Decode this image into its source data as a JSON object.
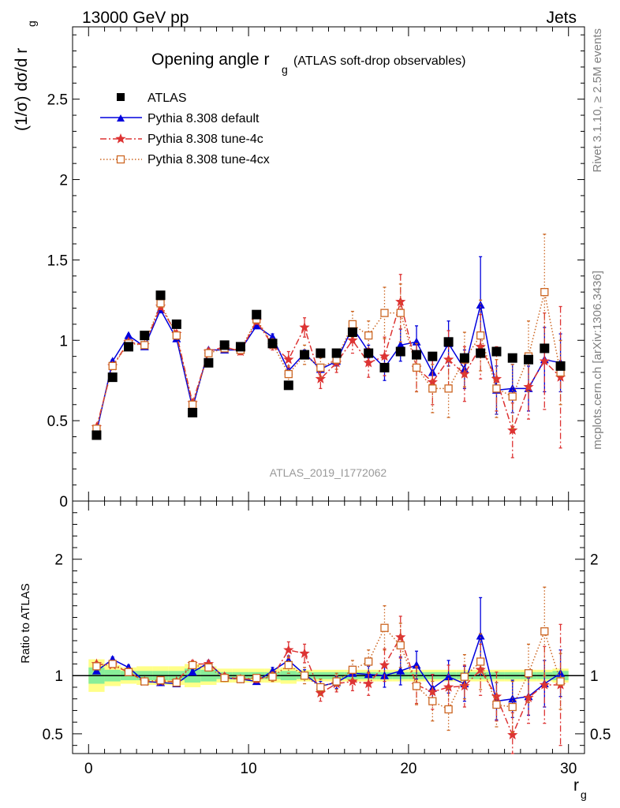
{
  "header": {
    "energy_label": "13000 GeV pp",
    "category_label": "Jets"
  },
  "side_text": {
    "rivet": "Rivet 3.1.10, ≥ 2.5M events",
    "mcplots": "mcplots.cern.ch [arXiv:1306.3436]"
  },
  "chart_data": [
    {
      "type": "scatter",
      "title_main": "Opening angle r",
      "title_sub": "g",
      "title_extra": "(ATLAS soft-drop observables)",
      "analysis_label": "ATLAS_2019_I1772062",
      "ylabel_main": "(1/σ) dσ/d r",
      "ylabel_sub": "g",
      "xlim": [
        -1,
        31
      ],
      "ylim": [
        0,
        2.95
      ],
      "yticks": [
        0,
        0.5,
        1,
        1.5,
        2,
        2.5
      ],
      "ytick_labels": [
        "0",
        "0.5",
        "1",
        "1.5",
        "2",
        "2.5"
      ],
      "legend": [
        "ATLAS",
        "Pythia 8.308 default",
        "Pythia 8.308 tune-4c",
        "Pythia 8.308 tune-4cx"
      ],
      "legend_position": "top-left",
      "series": [
        {
          "name": "ATLAS",
          "color": "#000000",
          "marker": "square-filled",
          "x": [
            0.5,
            1.5,
            2.5,
            3.5,
            4.5,
            5.5,
            6.5,
            7.5,
            8.5,
            9.5,
            10.5,
            11.5,
            12.5,
            13.5,
            14.5,
            15.5,
            16.5,
            17.5,
            18.5,
            19.5,
            20.5,
            21.5,
            22.5,
            23.5,
            24.5,
            25.5,
            26.5,
            27.5,
            28.5,
            29.5
          ],
          "y": [
            0.41,
            0.77,
            0.96,
            1.03,
            1.28,
            1.1,
            0.55,
            0.86,
            0.97,
            0.96,
            1.16,
            0.98,
            0.72,
            0.91,
            0.92,
            0.92,
            1.05,
            0.92,
            0.83,
            0.93,
            0.91,
            0.9,
            0.99,
            0.89,
            0.92,
            0.93,
            0.89,
            0.88,
            0.95,
            0.84
          ],
          "err": [
            0,
            0,
            0,
            0,
            0,
            0,
            0,
            0,
            0,
            0,
            0,
            0,
            0,
            0,
            0,
            0,
            0,
            0,
            0,
            0,
            0,
            0,
            0,
            0,
            0,
            0,
            0,
            0,
            0,
            0
          ]
        },
        {
          "name": "Pythia 8.308 default",
          "color": "#0000dd",
          "marker": "triangle-filled",
          "linestyle": "solid",
          "x": [
            0.5,
            1.5,
            2.5,
            3.5,
            4.5,
            5.5,
            6.5,
            7.5,
            8.5,
            9.5,
            10.5,
            11.5,
            12.5,
            13.5,
            14.5,
            15.5,
            16.5,
            17.5,
            18.5,
            19.5,
            20.5,
            21.5,
            22.5,
            23.5,
            24.5,
            25.5,
            26.5,
            27.5,
            28.5,
            29.5
          ],
          "y": [
            0.43,
            0.87,
            1.03,
            0.96,
            1.19,
            1.01,
            0.58,
            0.94,
            0.94,
            0.94,
            1.09,
            1.02,
            0.81,
            0.92,
            0.82,
            0.87,
            1.08,
            0.93,
            0.83,
            0.97,
            0.99,
            0.8,
            0.98,
            0.82,
            1.22,
            0.69,
            0.7,
            0.7,
            0.88,
            0.86
          ],
          "err": [
            0.01,
            0.01,
            0.01,
            0.01,
            0.01,
            0.01,
            0.01,
            0.01,
            0.01,
            0.01,
            0.01,
            0.02,
            0.02,
            0.02,
            0.02,
            0.03,
            0.03,
            0.04,
            0.08,
            0.1,
            0.1,
            0.1,
            0.14,
            0.12,
            0.3,
            0.15,
            0.15,
            0.14,
            0.2,
            0.18
          ]
        },
        {
          "name": "Pythia 8.308 tune-4c",
          "color": "#dd3333",
          "marker": "star",
          "linestyle": "dashdot",
          "x": [
            0.5,
            1.5,
            2.5,
            3.5,
            4.5,
            5.5,
            6.5,
            7.5,
            8.5,
            9.5,
            10.5,
            11.5,
            12.5,
            13.5,
            14.5,
            15.5,
            16.5,
            17.5,
            18.5,
            19.5,
            20.5,
            21.5,
            22.5,
            23.5,
            24.5,
            25.5,
            26.5,
            27.5,
            28.5,
            29.5
          ],
          "y": [
            0.46,
            0.84,
            0.99,
            0.97,
            1.21,
            1.04,
            0.61,
            0.93,
            0.96,
            0.93,
            1.12,
            0.97,
            0.88,
            1.08,
            0.76,
            0.86,
            1.0,
            0.86,
            0.9,
            1.24,
            0.83,
            0.74,
            0.88,
            0.79,
            0.96,
            0.76,
            0.44,
            0.71,
            0.87,
            0.77
          ],
          "err": [
            0.01,
            0.01,
            0.01,
            0.01,
            0.02,
            0.02,
            0.02,
            0.02,
            0.02,
            0.02,
            0.02,
            0.03,
            0.05,
            0.06,
            0.06,
            0.06,
            0.08,
            0.09,
            0.12,
            0.17,
            0.15,
            0.14,
            0.18,
            0.17,
            0.2,
            0.2,
            0.17,
            0.2,
            0.3,
            0.44
          ]
        },
        {
          "name": "Pythia 8.308 tune-4cx",
          "color": "#cc6622",
          "marker": "square-open",
          "linestyle": "dotted",
          "x": [
            0.5,
            1.5,
            2.5,
            3.5,
            4.5,
            5.5,
            6.5,
            7.5,
            8.5,
            9.5,
            10.5,
            11.5,
            12.5,
            13.5,
            14.5,
            15.5,
            16.5,
            17.5,
            18.5,
            19.5,
            20.5,
            21.5,
            22.5,
            23.5,
            24.5,
            25.5,
            26.5,
            27.5,
            28.5,
            29.5
          ],
          "y": [
            0.45,
            0.84,
            0.98,
            0.97,
            1.23,
            1.03,
            0.6,
            0.92,
            0.95,
            0.94,
            1.13,
            0.98,
            0.79,
            0.91,
            0.83,
            0.88,
            1.1,
            1.03,
            1.17,
            1.17,
            0.83,
            0.7,
            0.7,
            0.88,
            1.03,
            0.7,
            0.65,
            0.9,
            1.3,
            0.8
          ],
          "err": [
            0.01,
            0.01,
            0.01,
            0.01,
            0.02,
            0.02,
            0.02,
            0.02,
            0.02,
            0.02,
            0.02,
            0.03,
            0.05,
            0.06,
            0.06,
            0.06,
            0.08,
            0.09,
            0.16,
            0.18,
            0.15,
            0.15,
            0.18,
            0.17,
            0.22,
            0.18,
            0.2,
            0.22,
            0.36,
            0.2
          ]
        }
      ]
    },
    {
      "type": "scatter",
      "ylabel": "Ratio to ATLAS",
      "xlabel_main": "r",
      "xlabel_sub": "g",
      "xlim": [
        -1,
        31
      ],
      "ylim": [
        0.33,
        2.5
      ],
      "xticks": [
        0,
        10,
        20,
        30
      ],
      "xtick_labels": [
        "0",
        "10",
        "20",
        "30"
      ],
      "yticks": [
        0.5,
        1,
        2
      ],
      "ytick_labels": [
        "0.5",
        "1",
        "2"
      ],
      "reference_line": 1,
      "band_inner_color": "#88ee99",
      "band_outer_color": "#ffff88",
      "bands": {
        "x": [
          0.5,
          1.5,
          2.5,
          3.5,
          4.5,
          5.5,
          6.5,
          7.5,
          8.5,
          9.5,
          10.5,
          11.5,
          12.5,
          13.5,
          14.5,
          15.5,
          16.5,
          17.5,
          18.5,
          19.5,
          20.5,
          21.5,
          22.5,
          23.5,
          24.5,
          25.5,
          26.5,
          27.5,
          28.5,
          29.5
        ],
        "inner": [
          0.07,
          0.05,
          0.04,
          0.04,
          0.04,
          0.04,
          0.06,
          0.05,
          0.03,
          0.03,
          0.03,
          0.03,
          0.04,
          0.03,
          0.03,
          0.03,
          0.03,
          0.03,
          0.03,
          0.03,
          0.03,
          0.03,
          0.03,
          0.03,
          0.03,
          0.03,
          0.03,
          0.03,
          0.03,
          0.04
        ],
        "outer": [
          0.14,
          0.09,
          0.07,
          0.08,
          0.08,
          0.08,
          0.1,
          0.08,
          0.06,
          0.06,
          0.06,
          0.06,
          0.07,
          0.05,
          0.05,
          0.05,
          0.05,
          0.05,
          0.05,
          0.05,
          0.05,
          0.05,
          0.05,
          0.05,
          0.05,
          0.05,
          0.05,
          0.05,
          0.05,
          0.06
        ]
      },
      "series": [
        {
          "name": "Pythia 8.308 default",
          "color": "#0000dd",
          "marker": "triangle-filled",
          "linestyle": "solid",
          "x": [
            0.5,
            1.5,
            2.5,
            3.5,
            4.5,
            5.5,
            6.5,
            7.5,
            8.5,
            9.5,
            10.5,
            11.5,
            12.5,
            13.5,
            14.5,
            15.5,
            16.5,
            17.5,
            18.5,
            19.5,
            20.5,
            21.5,
            22.5,
            23.5,
            24.5,
            25.5,
            26.5,
            27.5,
            28.5,
            29.5
          ],
          "y": [
            1.04,
            1.14,
            1.07,
            0.95,
            0.94,
            0.93,
            1.03,
            1.11,
            0.98,
            0.97,
            0.95,
            1.04,
            1.13,
            1.01,
            0.91,
            0.94,
            1.02,
            1.01,
            1.0,
            1.04,
            1.09,
            0.89,
            0.99,
            0.93,
            1.34,
            0.78,
            0.8,
            0.82,
            0.93,
            1.02
          ],
          "err": [
            0.02,
            0.02,
            0.02,
            0.01,
            0.01,
            0.01,
            0.02,
            0.02,
            0.02,
            0.02,
            0.02,
            0.03,
            0.04,
            0.04,
            0.04,
            0.05,
            0.06,
            0.07,
            0.1,
            0.12,
            0.12,
            0.12,
            0.14,
            0.15,
            0.33,
            0.16,
            0.16,
            0.16,
            0.2,
            0.2
          ]
        },
        {
          "name": "Pythia 8.308 tune-4c",
          "color": "#dd3333",
          "marker": "star",
          "linestyle": "dashdot",
          "x": [
            0.5,
            1.5,
            2.5,
            3.5,
            4.5,
            5.5,
            6.5,
            7.5,
            8.5,
            9.5,
            10.5,
            11.5,
            12.5,
            13.5,
            14.5,
            15.5,
            16.5,
            17.5,
            18.5,
            19.5,
            20.5,
            21.5,
            22.5,
            23.5,
            24.5,
            25.5,
            26.5,
            27.5,
            28.5,
            29.5
          ],
          "y": [
            1.1,
            1.09,
            1.03,
            0.95,
            0.95,
            0.95,
            1.1,
            1.1,
            0.99,
            0.97,
            0.97,
            0.99,
            1.22,
            1.19,
            0.85,
            0.93,
            0.95,
            0.93,
            1.09,
            1.33,
            0.92,
            0.86,
            0.9,
            0.91,
            1.05,
            0.82,
            0.49,
            0.81,
            0.92,
            0.92
          ],
          "err": [
            0.02,
            0.02,
            0.02,
            0.02,
            0.02,
            0.02,
            0.03,
            0.03,
            0.03,
            0.03,
            0.03,
            0.04,
            0.07,
            0.08,
            0.07,
            0.07,
            0.08,
            0.1,
            0.14,
            0.18,
            0.16,
            0.15,
            0.19,
            0.18,
            0.22,
            0.21,
            0.19,
            0.22,
            0.33,
            0.52
          ]
        },
        {
          "name": "Pythia 8.308 tune-4cx",
          "color": "#cc6622",
          "marker": "square-open",
          "linestyle": "dotted",
          "x": [
            0.5,
            1.5,
            2.5,
            3.5,
            4.5,
            5.5,
            6.5,
            7.5,
            8.5,
            9.5,
            10.5,
            11.5,
            12.5,
            13.5,
            14.5,
            15.5,
            16.5,
            17.5,
            18.5,
            19.5,
            20.5,
            21.5,
            22.5,
            23.5,
            24.5,
            25.5,
            26.5,
            27.5,
            28.5,
            29.5
          ],
          "y": [
            1.08,
            1.1,
            1.03,
            0.95,
            0.96,
            0.94,
            1.09,
            1.07,
            0.98,
            0.97,
            0.98,
            0.99,
            1.09,
            1.0,
            0.9,
            0.95,
            1.05,
            1.12,
            1.41,
            1.26,
            0.91,
            0.78,
            0.71,
            0.99,
            1.12,
            0.75,
            0.73,
            1.02,
            1.38,
            0.95
          ],
          "err": [
            0.02,
            0.02,
            0.02,
            0.02,
            0.02,
            0.02,
            0.03,
            0.03,
            0.03,
            0.03,
            0.03,
            0.04,
            0.07,
            0.07,
            0.07,
            0.07,
            0.08,
            0.1,
            0.19,
            0.19,
            0.16,
            0.17,
            0.18,
            0.19,
            0.24,
            0.19,
            0.22,
            0.25,
            0.38,
            0.24
          ]
        }
      ]
    }
  ]
}
